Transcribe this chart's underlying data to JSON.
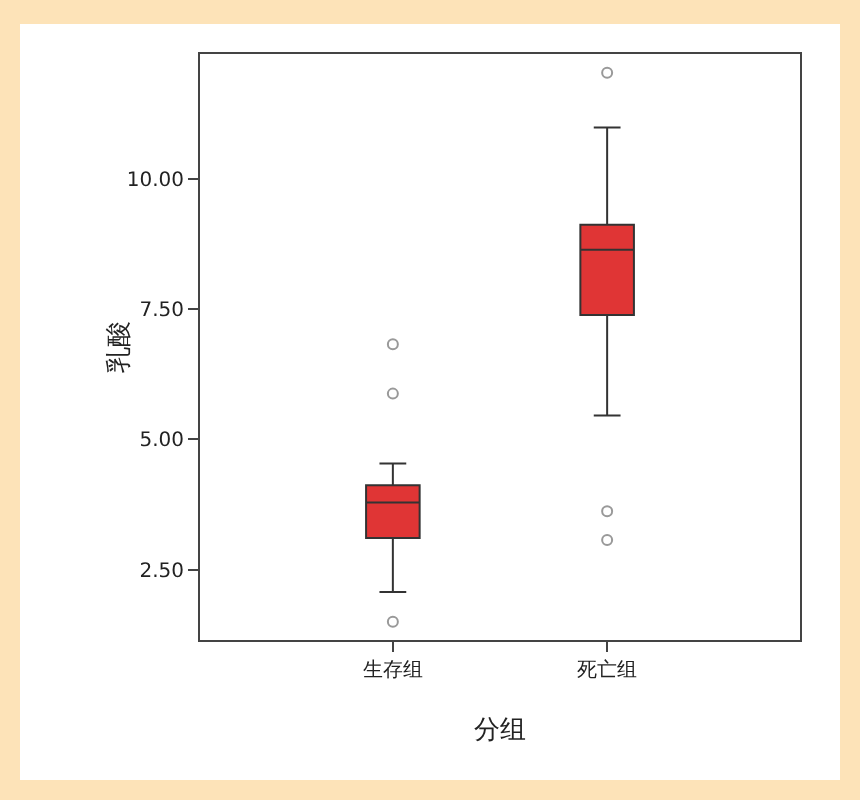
{
  "chart_data": {
    "type": "box",
    "xlabel": "分组",
    "ylabel": "乳酸",
    "categories": [
      "生存组",
      "死亡组"
    ],
    "series": [
      {
        "color": "#e03535",
        "boxes": [
          {
            "low": 2.07,
            "q1": 3.11,
            "median": 3.79,
            "q3": 4.12,
            "high": 4.54,
            "outliers": [
              6.83,
              5.88,
              1.5
            ]
          },
          {
            "low": 5.46,
            "q1": 7.39,
            "median": 8.64,
            "q3": 9.12,
            "high": 10.99,
            "outliers": [
              12.04,
              3.62,
              3.07
            ]
          }
        ]
      }
    ],
    "ylim": [
      1.15,
      12.4
    ],
    "yticks": [
      {
        "value": 2.5,
        "label": "2.50"
      },
      {
        "value": 5,
        "label": "5.00"
      },
      {
        "value": 7.5,
        "label": "7.50"
      },
      {
        "value": 10,
        "label": "10.00"
      }
    ],
    "grid": false,
    "marker": "circle"
  }
}
